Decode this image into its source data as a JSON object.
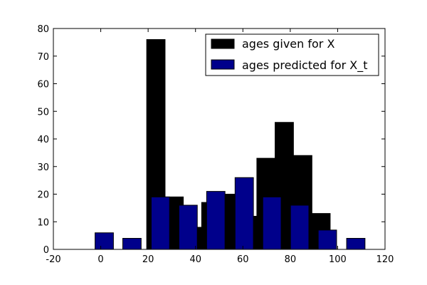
{
  "chart_data": {
    "type": "bar",
    "title": "",
    "xlabel": "",
    "ylabel": "",
    "xlim": [
      -20,
      120
    ],
    "ylim": [
      0,
      80
    ],
    "xticks": [
      -20,
      0,
      20,
      40,
      60,
      80,
      100,
      120
    ],
    "yticks": [
      0,
      10,
      20,
      30,
      40,
      50,
      60,
      70,
      80
    ],
    "grid": false,
    "legend_position": "top-right",
    "bin_width": 7.75,
    "series": [
      {
        "name": "ages given for X",
        "color": "#000000",
        "bars": [
          {
            "x_start": 19.4,
            "value": 76
          },
          {
            "x_start": 27.1,
            "value": 19
          },
          {
            "x_start": 34.9,
            "value": 8
          },
          {
            "x_start": 42.6,
            "value": 17
          },
          {
            "x_start": 50.4,
            "value": 20
          },
          {
            "x_start": 58.1,
            "value": 12
          },
          {
            "x_start": 65.9,
            "value": 33
          },
          {
            "x_start": 73.6,
            "value": 46
          },
          {
            "x_start": 81.4,
            "value": 34
          },
          {
            "x_start": 89.1,
            "value": 13
          }
        ]
      },
      {
        "name": "ages predicted for X_t",
        "color": "#00008b",
        "bars": [
          {
            "x_start": -2.4,
            "value": 6
          },
          {
            "x_start": 9.3,
            "value": 4
          },
          {
            "x_start": 21.3,
            "value": 19
          },
          {
            "x_start": 33.0,
            "value": 16
          },
          {
            "x_start": 44.7,
            "value": 21
          },
          {
            "x_start": 56.7,
            "value": 26
          },
          {
            "x_start": 68.4,
            "value": 19
          },
          {
            "x_start": 80.1,
            "value": 16
          },
          {
            "x_start": 91.8,
            "value": 7
          },
          {
            "x_start": 103.8,
            "value": 4
          }
        ]
      }
    ]
  }
}
